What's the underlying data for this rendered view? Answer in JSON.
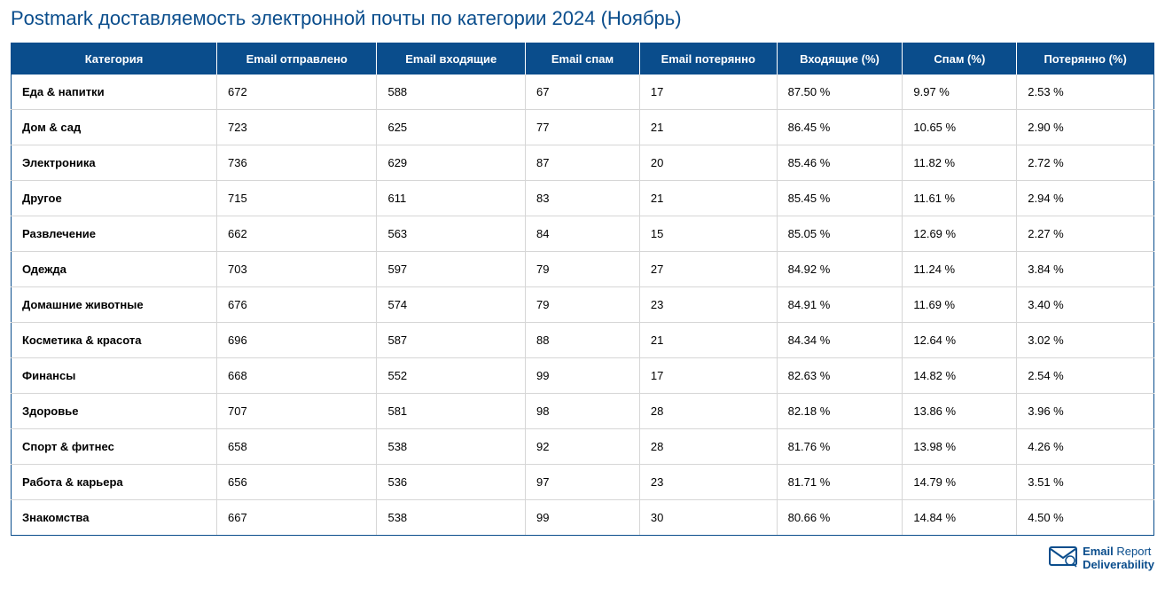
{
  "title": "Postmark доставляемость электронной почты по категории 2024 (Ноябрь)",
  "table": {
    "type": "table",
    "header_bg": "#0a4d8c",
    "header_text_color": "#ffffff",
    "border_color": "#0a4d8c",
    "row_border_color": "#d6d6d6",
    "font_size": 13,
    "columns": [
      {
        "label": "Категория",
        "width": "18%",
        "align": "left",
        "bold_cells": true
      },
      {
        "label": "Email отправлено",
        "width": "14%",
        "align": "left"
      },
      {
        "label": "Email входящие",
        "width": "13%",
        "align": "left"
      },
      {
        "label": "Email спам",
        "width": "10%",
        "align": "left"
      },
      {
        "label": "Email потерянно",
        "width": "12%",
        "align": "left"
      },
      {
        "label": "Входящие (%)",
        "width": "11%",
        "align": "left"
      },
      {
        "label": "Спам (%)",
        "width": "10%",
        "align": "left"
      },
      {
        "label": "Потерянно (%)",
        "width": "12%",
        "align": "left"
      }
    ],
    "rows": [
      [
        "Еда & напитки",
        "672",
        "588",
        "67",
        "17",
        "87.50 %",
        "9.97 %",
        "2.53 %"
      ],
      [
        "Дом & сад",
        "723",
        "625",
        "77",
        "21",
        "86.45 %",
        "10.65 %",
        "2.90 %"
      ],
      [
        "Электроника",
        "736",
        "629",
        "87",
        "20",
        "85.46 %",
        "11.82 %",
        "2.72 %"
      ],
      [
        "Другое",
        "715",
        "611",
        "83",
        "21",
        "85.45 %",
        "11.61 %",
        "2.94 %"
      ],
      [
        "Развлечение",
        "662",
        "563",
        "84",
        "15",
        "85.05 %",
        "12.69 %",
        "2.27 %"
      ],
      [
        "Одежда",
        "703",
        "597",
        "79",
        "27",
        "84.92 %",
        "11.24 %",
        "3.84 %"
      ],
      [
        "Домашние животные",
        "676",
        "574",
        "79",
        "23",
        "84.91 %",
        "11.69 %",
        "3.40 %"
      ],
      [
        "Косметика & красота",
        "696",
        "587",
        "88",
        "21",
        "84.34 %",
        "12.64 %",
        "3.02 %"
      ],
      [
        "Финансы",
        "668",
        "552",
        "99",
        "17",
        "82.63 %",
        "14.82 %",
        "2.54 %"
      ],
      [
        "Здоровье",
        "707",
        "581",
        "98",
        "28",
        "82.18 %",
        "13.86 %",
        "3.96 %"
      ],
      [
        "Спорт & фитнес",
        "658",
        "538",
        "92",
        "28",
        "81.76 %",
        "13.98 %",
        "4.26 %"
      ],
      [
        "Работа & карьера",
        "656",
        "536",
        "97",
        "23",
        "81.71 %",
        "14.79 %",
        "3.51 %"
      ],
      [
        "Знакомства",
        "667",
        "538",
        "99",
        "30",
        "80.66 %",
        "14.84 %",
        "4.50 %"
      ]
    ]
  },
  "footer": {
    "brand_line1_a": "Email",
    "brand_line1_b": "Report",
    "brand_line2": "Deliverability",
    "icon_color": "#0a4d8c"
  }
}
